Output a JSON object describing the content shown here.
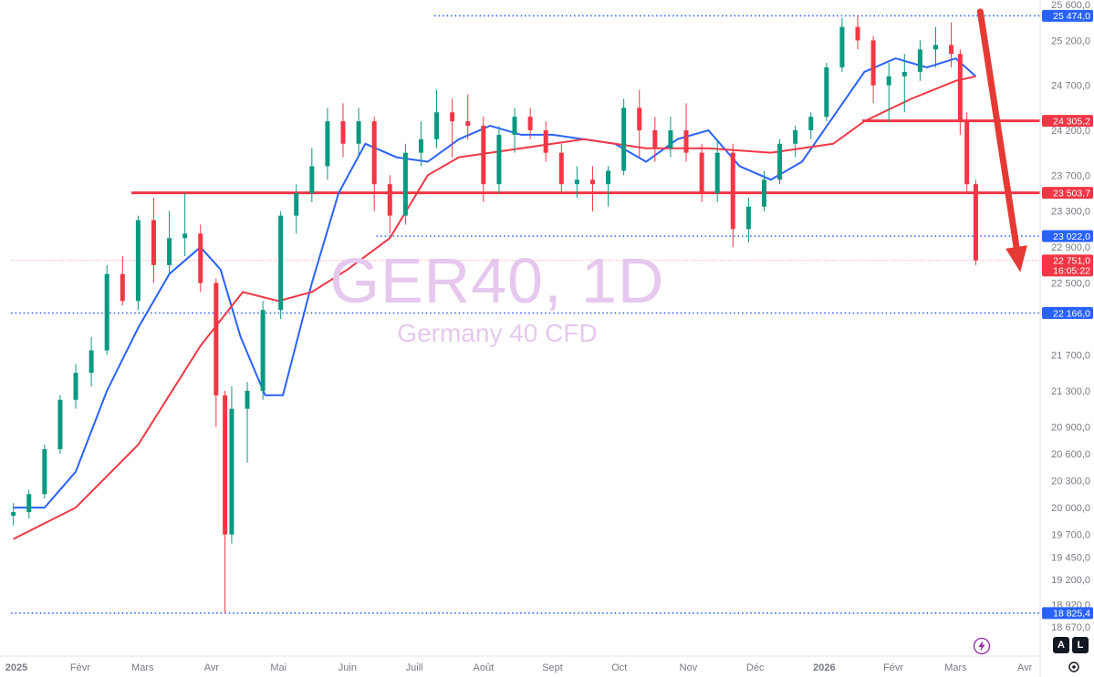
{
  "chart_data": {
    "type": "candlestick",
    "title": "GER40, 1D",
    "subtitle": "Germany 40 CFD",
    "ylim": [
      18500,
      25650
    ],
    "y_ticks": [
      "25 600,0",
      "25 200,0",
      "24 700,0",
      "24 200,0",
      "23 700,0",
      "23 300,0",
      "22 900,0",
      "22 500,0",
      "21 700,0",
      "21 300,0",
      "20 900,0",
      "20 600,0",
      "20 300,0",
      "20 000,0",
      "19 700,0",
      "19 450,0",
      "19 200,0",
      "18 920,0",
      "18 670,0"
    ],
    "y_tick_values": [
      25600,
      25200,
      24700,
      24200,
      23700,
      23300,
      22900,
      22500,
      21700,
      21300,
      20900,
      20600,
      20300,
      20000,
      19700,
      19450,
      19200,
      18920,
      18670
    ],
    "x_ticks": [
      "2025",
      "Févr",
      "Mars",
      "Avr",
      "Mai",
      "Juin",
      "Juill",
      "Août",
      "Sept",
      "Oct",
      "Nov",
      "Déc",
      "2026",
      "Févr",
      "Mars",
      "Avr"
    ],
    "x_tick_dates": [
      "2025-01-01",
      "2025-02-01",
      "2025-03-01",
      "2025-04-01",
      "2025-05-01",
      "2025-06-01",
      "2025-07-01",
      "2025-08-01",
      "2025-09-01",
      "2025-10-01",
      "2025-11-01",
      "2025-12-01",
      "2026-01-01",
      "2026-02-01",
      "2026-03-01",
      "2026-04-01"
    ],
    "series": [
      {
        "name": "",
        "kind": "ohlc",
        "color_up": "#089981",
        "color_down": "#f23645",
        "points": [
          [
            "2025-01-02",
            19909,
            20050,
            19800,
            19950
          ],
          [
            "2025-01-09",
            19950,
            20200,
            19880,
            20150
          ],
          [
            "2025-01-16",
            20150,
            20700,
            20100,
            20650
          ],
          [
            "2025-01-23",
            20650,
            21250,
            20600,
            21200
          ],
          [
            "2025-01-30",
            21200,
            21600,
            21100,
            21500
          ],
          [
            "2025-02-06",
            21500,
            21900,
            21350,
            21750
          ],
          [
            "2025-02-13",
            21750,
            22700,
            21700,
            22600
          ],
          [
            "2025-02-20",
            22600,
            22800,
            22250,
            22300
          ],
          [
            "2025-02-27",
            22300,
            23250,
            22200,
            23200
          ],
          [
            "2025-03-06",
            23200,
            23450,
            22500,
            22700
          ],
          [
            "2025-03-13",
            22700,
            23300,
            22600,
            23000
          ],
          [
            "2025-03-20",
            23000,
            23500,
            22800,
            23050
          ],
          [
            "2025-03-27",
            23050,
            23150,
            22400,
            22500
          ],
          [
            "2025-04-03",
            22500,
            22550,
            20900,
            21250
          ],
          [
            "2025-04-07",
            21250,
            21300,
            18825,
            19700
          ],
          [
            "2025-04-10",
            19700,
            21350,
            19600,
            21100
          ],
          [
            "2025-04-17",
            21100,
            21400,
            20500,
            21300
          ],
          [
            "2025-04-24",
            21300,
            22300,
            21200,
            22200
          ],
          [
            "2025-05-02",
            22200,
            23300,
            22100,
            23250
          ],
          [
            "2025-05-09",
            23250,
            23600,
            23050,
            23500
          ],
          [
            "2025-05-16",
            23500,
            24000,
            23400,
            23800
          ],
          [
            "2025-05-23",
            23800,
            24450,
            23650,
            24300
          ],
          [
            "2025-05-30",
            24300,
            24500,
            23900,
            24050
          ],
          [
            "2025-06-06",
            24050,
            24450,
            23900,
            24300
          ],
          [
            "2025-06-13",
            24300,
            24350,
            23300,
            23600
          ],
          [
            "2025-06-20",
            23600,
            23700,
            23050,
            23250
          ],
          [
            "2025-06-27",
            23250,
            24050,
            23150,
            23950
          ],
          [
            "2025-07-04",
            23950,
            24300,
            23800,
            24100
          ],
          [
            "2025-07-11",
            24100,
            24650,
            24000,
            24400
          ],
          [
            "2025-07-18",
            24400,
            24550,
            23900,
            24300
          ],
          [
            "2025-07-25",
            24300,
            24600,
            24100,
            24250
          ],
          [
            "2025-08-01",
            24250,
            24350,
            23400,
            23600
          ],
          [
            "2025-08-08",
            23600,
            24250,
            23500,
            24150
          ],
          [
            "2025-08-15",
            24150,
            24450,
            23950,
            24350
          ],
          [
            "2025-08-22",
            24350,
            24450,
            24100,
            24200
          ],
          [
            "2025-08-29",
            24200,
            24300,
            23850,
            23950
          ],
          [
            "2025-09-05",
            23950,
            24050,
            23500,
            23600
          ],
          [
            "2025-09-12",
            23600,
            23800,
            23450,
            23650
          ],
          [
            "2025-09-19",
            23650,
            23800,
            23300,
            23600
          ],
          [
            "2025-09-26",
            23600,
            23800,
            23350,
            23750
          ],
          [
            "2025-10-03",
            23750,
            24550,
            23700,
            24450
          ],
          [
            "2025-10-10",
            24450,
            24650,
            23900,
            24200
          ],
          [
            "2025-10-17",
            24200,
            24350,
            23850,
            24000
          ],
          [
            "2025-10-24",
            24000,
            24350,
            23900,
            24200
          ],
          [
            "2025-10-31",
            24200,
            24500,
            23850,
            23950
          ],
          [
            "2025-11-07",
            23950,
            24050,
            23400,
            23500
          ],
          [
            "2025-11-14",
            23500,
            24100,
            23400,
            23950
          ],
          [
            "2025-11-21",
            23950,
            24050,
            22900,
            23100
          ],
          [
            "2025-11-28",
            23100,
            23450,
            22950,
            23350
          ],
          [
            "2025-12-05",
            23350,
            23750,
            23300,
            23650
          ],
          [
            "2025-12-12",
            23650,
            24100,
            23600,
            24050
          ],
          [
            "2025-12-19",
            24050,
            24250,
            23900,
            24200
          ],
          [
            "2025-12-26",
            24200,
            24400,
            24100,
            24350
          ],
          [
            "2026-01-02",
            24350,
            24950,
            24300,
            24900
          ],
          [
            "2026-01-09",
            24900,
            25450,
            24850,
            25350
          ],
          [
            "2026-01-16",
            25350,
            25474,
            25100,
            25200
          ],
          [
            "2026-01-23",
            25200,
            25250,
            24500,
            24700
          ],
          [
            "2026-01-30",
            24700,
            24950,
            24300,
            24800
          ],
          [
            "2026-02-06",
            24800,
            25050,
            24400,
            24850
          ],
          [
            "2026-02-13",
            24850,
            25200,
            24750,
            25100
          ],
          [
            "2026-02-20",
            25100,
            25350,
            24900,
            25150
          ],
          [
            "2026-02-27",
            25150,
            25400,
            24900,
            25050
          ],
          [
            "2026-03-03",
            25050,
            25100,
            24150,
            24300
          ],
          [
            "2026-03-06",
            24300,
            24400,
            23500,
            23600
          ],
          [
            "2026-03-10",
            23600,
            23650,
            22700,
            22751
          ]
        ]
      },
      {
        "name": "",
        "kind": "ma",
        "color": "#2962ff",
        "points": [
          [
            "2025-01-02",
            20000
          ],
          [
            "2025-01-16",
            20000
          ],
          [
            "2025-01-30",
            20400
          ],
          [
            "2025-02-13",
            21300
          ],
          [
            "2025-02-27",
            22000
          ],
          [
            "2025-03-13",
            22600
          ],
          [
            "2025-03-27",
            22900
          ],
          [
            "2025-04-05",
            22650
          ],
          [
            "2025-04-14",
            21900
          ],
          [
            "2025-04-25",
            21250
          ],
          [
            "2025-05-03",
            21250
          ],
          [
            "2025-05-16",
            22500
          ],
          [
            "2025-05-28",
            23500
          ],
          [
            "2025-06-09",
            24050
          ],
          [
            "2025-06-23",
            23900
          ],
          [
            "2025-07-07",
            23850
          ],
          [
            "2025-07-21",
            24100
          ],
          [
            "2025-08-04",
            24250
          ],
          [
            "2025-08-18",
            24150
          ],
          [
            "2025-09-01",
            24150
          ],
          [
            "2025-09-15",
            24100
          ],
          [
            "2025-09-29",
            24050
          ],
          [
            "2025-10-13",
            23850
          ],
          [
            "2025-10-27",
            24100
          ],
          [
            "2025-11-10",
            24200
          ],
          [
            "2025-11-24",
            23800
          ],
          [
            "2025-12-08",
            23650
          ],
          [
            "2025-12-22",
            23850
          ],
          [
            "2026-01-05",
            24350
          ],
          [
            "2026-01-19",
            24850
          ],
          [
            "2026-02-02",
            25000
          ],
          [
            "2026-02-16",
            24900
          ],
          [
            "2026-03-01",
            25000
          ],
          [
            "2026-03-10",
            24800
          ]
        ]
      },
      {
        "name": "",
        "kind": "ma",
        "color": "#f23645",
        "points": [
          [
            "2025-01-02",
            19650
          ],
          [
            "2025-01-30",
            20000
          ],
          [
            "2025-02-27",
            20700
          ],
          [
            "2025-03-27",
            21800
          ],
          [
            "2025-04-15",
            22400
          ],
          [
            "2025-05-01",
            22300
          ],
          [
            "2025-05-16",
            22400
          ],
          [
            "2025-06-01",
            22650
          ],
          [
            "2025-06-20",
            23000
          ],
          [
            "2025-07-07",
            23700
          ],
          [
            "2025-07-21",
            23900
          ],
          [
            "2025-08-18",
            24000
          ],
          [
            "2025-09-15",
            24100
          ],
          [
            "2025-10-13",
            24000
          ],
          [
            "2025-11-10",
            24000
          ],
          [
            "2025-12-08",
            23950
          ],
          [
            "2026-01-05",
            24050
          ],
          [
            "2026-01-19",
            24300
          ],
          [
            "2026-02-09",
            24550
          ],
          [
            "2026-03-01",
            24750
          ],
          [
            "2026-03-10",
            24800
          ]
        ]
      }
    ],
    "levels": [
      {
        "price": 25474,
        "label": "25 474,0",
        "style": "dotted",
        "color": "#2962ff",
        "x_start": "2025-07-10"
      },
      {
        "price": 24305.2,
        "label": "24 305,2",
        "style": "solid",
        "color": "#f23645",
        "x_start": "2026-01-18"
      },
      {
        "price": 23503.7,
        "label": "23 503,7",
        "style": "solid",
        "color": "#f23645",
        "x_start": "2025-02-24"
      },
      {
        "price": 23022,
        "label": "23 022,0",
        "style": "dotted",
        "color": "#2962ff",
        "x_start": "2025-06-14"
      },
      {
        "price": 22751,
        "label": "22 751,0",
        "sublabel": "16:05:22",
        "style": "thin-dotted",
        "color": "#f23645",
        "x_start": "2025-01-01"
      },
      {
        "price": 22166,
        "label": "22 166,0",
        "style": "dotted",
        "color": "#2962ff",
        "x_start": "2025-01-01"
      },
      {
        "price": 18825.4,
        "label": "18 825,4",
        "style": "dotted",
        "color": "#2962ff",
        "x_start": "2025-01-01"
      }
    ],
    "arrow": {
      "from": [
        "2026-03-12",
        25520
      ],
      "to": [
        "2026-03-30",
        22620
      ],
      "color": "#e53935"
    }
  },
  "controls": {
    "auto_label": "A",
    "log_label": "L"
  }
}
